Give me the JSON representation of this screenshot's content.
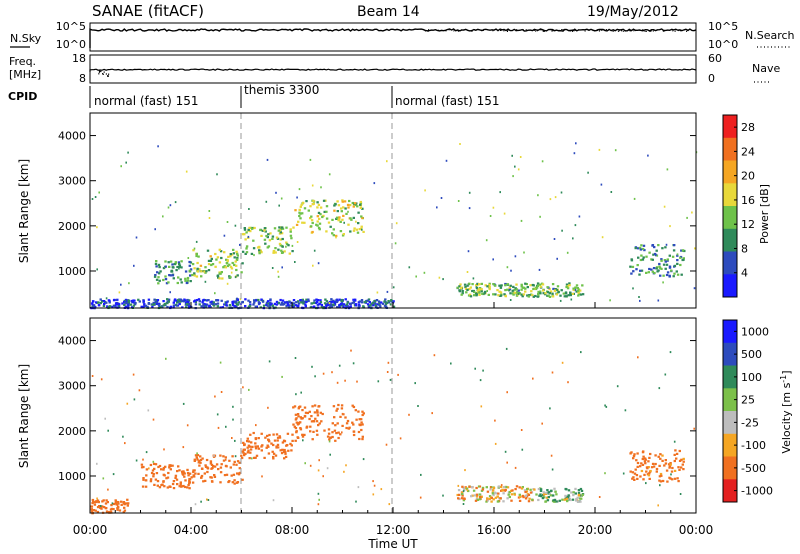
{
  "header": {
    "station": "SANAE (fitACF)",
    "beam": "Beam 14",
    "date": "19/May/2012"
  },
  "panels": {
    "nsky": {
      "label": "N.Sky",
      "tick_top": "10^5",
      "tick_bottom": "10^0"
    },
    "nsearch": {
      "label": "N.Search",
      "tick_top": "10^5",
      "tick_bottom": "10^0"
    },
    "freq": {
      "label_line1": "Freq.",
      "label_line2": "[MHz]",
      "tick_top": "18",
      "tick_bottom": "8"
    },
    "nave": {
      "label": "Nave",
      "tick_top": "60",
      "tick_bottom": "0"
    },
    "cpid": {
      "label": "CPID",
      "segments": [
        "normal (fast) 151",
        "themis 3300",
        "normal (fast) 151"
      ]
    }
  },
  "colors": {
    "power": [
      "#1a1aff",
      "#2d4bbd",
      "#2f8a5a",
      "#6ec24a",
      "#e8d83a",
      "#f5a623",
      "#f07020",
      "#ee2020"
    ],
    "velocity": [
      "#e42020",
      "#f07020",
      "#f5a623",
      "#bdbdbd",
      "#7cc04a",
      "#2f8a5a",
      "#2d4bbd",
      "#1a1aff"
    ]
  },
  "chart_data": [
    {
      "type": "heatmap",
      "title": "",
      "xlabel": "Time UT",
      "ylabel": "Slant Range [km]",
      "xlim": [
        "00:00",
        "24:00"
      ],
      "ylim": [
        180,
        4500
      ],
      "xticks": [
        "00:00",
        "04:00",
        "08:00",
        "12:00",
        "16:00",
        "20:00",
        "00:00"
      ],
      "yticks": [
        1000,
        2000,
        3000,
        4000
      ],
      "colorbar": {
        "label": "Power [dB]",
        "ticks": [
          "4",
          "8",
          "12",
          "16",
          "20",
          "24",
          "28"
        ],
        "range": [
          0,
          30
        ]
      },
      "regions": [
        {
          "t_start": 0.0,
          "t_end": 12.0,
          "range_start": 200,
          "range_end": 400,
          "level": 5
        },
        {
          "t_start": 2.5,
          "t_end": 4.0,
          "range_start": 750,
          "range_end": 1250,
          "level": 10
        },
        {
          "t_start": 4.0,
          "t_end": 6.0,
          "range_start": 850,
          "range_end": 1500,
          "level": 14
        },
        {
          "t_start": 6.0,
          "t_end": 8.0,
          "range_start": 1400,
          "range_end": 2000,
          "level": 13
        },
        {
          "t_start": 8.0,
          "t_end": 10.8,
          "range_start": 1800,
          "range_end": 2600,
          "level": 15
        },
        {
          "t_start": 14.5,
          "t_end": 19.5,
          "range_start": 450,
          "range_end": 750,
          "level": 12
        },
        {
          "t_start": 21.3,
          "t_end": 23.5,
          "range_start": 900,
          "range_end": 1600,
          "level": 9
        }
      ]
    },
    {
      "type": "heatmap",
      "title": "",
      "xlabel": "Time UT",
      "ylabel": "Slant Range [km]",
      "xlim": [
        "00:00",
        "24:00"
      ],
      "ylim": [
        180,
        4500
      ],
      "xticks": [
        "00:00",
        "04:00",
        "08:00",
        "12:00",
        "16:00",
        "20:00",
        "00:00"
      ],
      "yticks": [
        1000,
        2000,
        3000,
        4000
      ],
      "colorbar": {
        "label": "Velocity [m s^-1]",
        "ticks": [
          "1000",
          "500",
          "100",
          "25",
          "-25",
          "-100",
          "-500",
          "-1000"
        ],
        "range": [
          -1000,
          1000
        ]
      },
      "regions": [
        {
          "t_start": 0.0,
          "t_end": 1.5,
          "range_start": 200,
          "range_end": 500,
          "level": -300
        },
        {
          "t_start": 2.0,
          "t_end": 4.0,
          "range_start": 750,
          "range_end": 1300,
          "level": -300
        },
        {
          "t_start": 4.0,
          "t_end": 6.0,
          "range_start": 850,
          "range_end": 1500,
          "level": -300
        },
        {
          "t_start": 6.0,
          "t_end": 8.0,
          "range_start": 1400,
          "range_end": 2000,
          "level": -250
        },
        {
          "t_start": 8.0,
          "t_end": 10.8,
          "range_start": 1800,
          "range_end": 2600,
          "level": -300
        },
        {
          "t_start": 14.5,
          "t_end": 17.5,
          "range_start": 450,
          "range_end": 800,
          "level": -50
        },
        {
          "t_start": 17.5,
          "t_end": 19.5,
          "range_start": 450,
          "range_end": 750,
          "level": 80
        },
        {
          "t_start": 21.3,
          "t_end": 23.5,
          "range_start": 900,
          "range_end": 1600,
          "level": -200
        }
      ]
    }
  ]
}
